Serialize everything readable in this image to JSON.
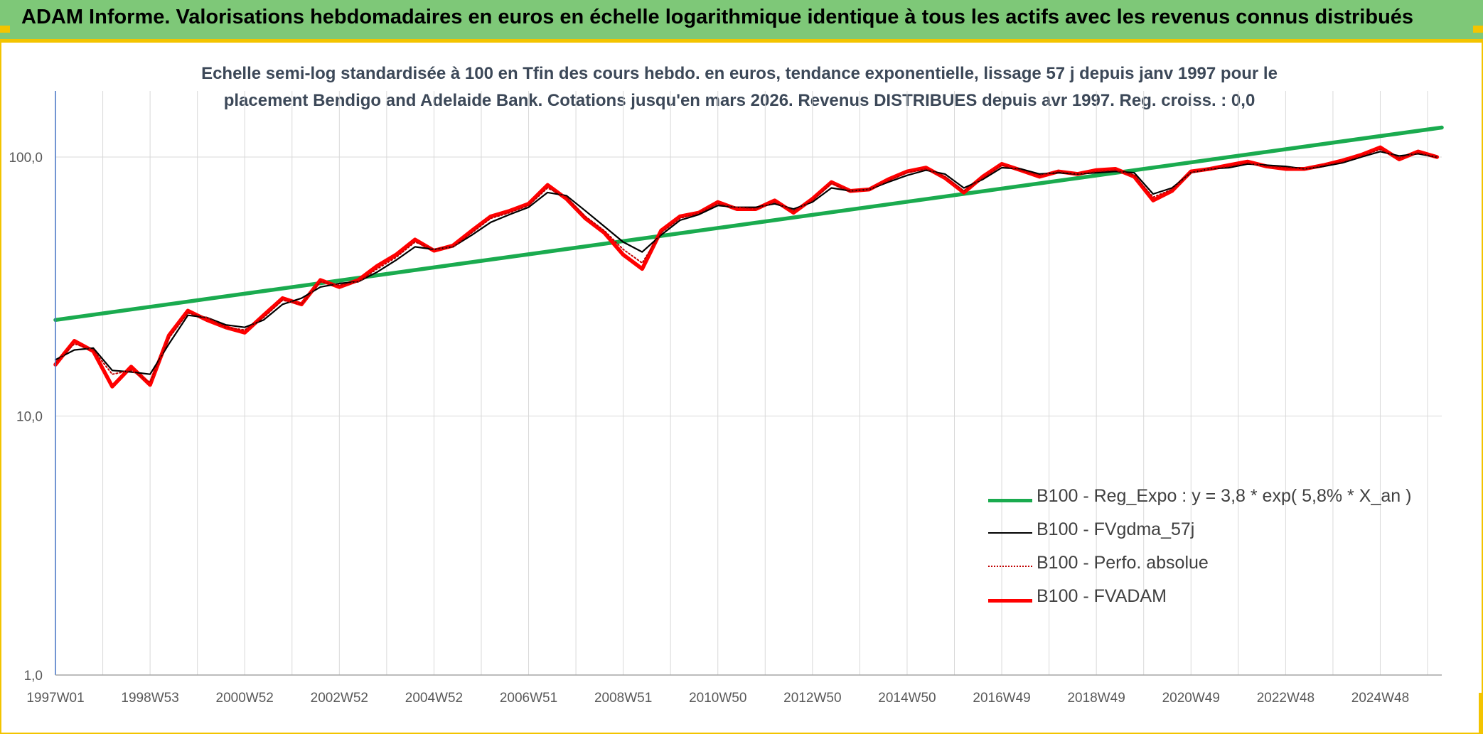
{
  "header": {
    "title": "ADAM Informe. Valorisations hebdomadaires en euros en échelle logarithmique identique à tous les actifs avec les revenus connus distribués"
  },
  "chart_data": {
    "type": "line",
    "title_line1": "Echelle semi-log standardisée à 100 en Tfin des cours hebdo. en euros, tendance exponentielle, lissage 57 j depuis janv 1997 pour le",
    "title_line2": "placement Bendigo and Adelaide Bank. Cotations jusqu'en mars 2026. Revenus DISTRIBUES depuis avr 1997. Reg. croiss. : 0,0",
    "y_scale": "log",
    "ylim": [
      1,
      180
    ],
    "xlim": [
      1997.0,
      2026.3
    ],
    "y_ticks": [
      {
        "value": 1,
        "label": "1,0"
      },
      {
        "value": 10,
        "label": "10,0"
      },
      {
        "value": 100,
        "label": "100,0"
      }
    ],
    "x_ticks": [
      {
        "year": 1997.0,
        "label": "1997W01"
      },
      {
        "year": 1999.0,
        "label": "1998W53"
      },
      {
        "year": 2001.0,
        "label": "2000W52"
      },
      {
        "year": 2003.0,
        "label": "2002W52"
      },
      {
        "year": 2005.0,
        "label": "2004W52"
      },
      {
        "year": 2007.0,
        "label": "2006W51"
      },
      {
        "year": 2009.0,
        "label": "2008W51"
      },
      {
        "year": 2011.0,
        "label": "2010W50"
      },
      {
        "year": 2013.0,
        "label": "2012W50"
      },
      {
        "year": 2015.0,
        "label": "2014W50"
      },
      {
        "year": 2017.0,
        "label": "2016W49"
      },
      {
        "year": 2019.0,
        "label": "2018W49"
      },
      {
        "year": 2021.0,
        "label": "2020W49"
      },
      {
        "year": 2023.0,
        "label": "2022W48"
      },
      {
        "year": 2025.0,
        "label": "2024W48"
      }
    ],
    "grid": "vertical-and-horizontal",
    "legend_placement": "bottom-right",
    "series": [
      {
        "name": "B100 - Reg_Expo : y = 3,8 * exp( 5,8% *  X_an )",
        "color": "#1aab4f",
        "style": "solid-thick",
        "x": [
          1997.0,
          2026.3
        ],
        "values": [
          23.5,
          130
        ]
      },
      {
        "name": "B100 - FVgdma_57j",
        "color": "#000000",
        "style": "solid-thin",
        "x": [
          1997.0,
          1997.4,
          1997.8,
          1998.2,
          1998.6,
          1999.0,
          1999.4,
          1999.8,
          2000.2,
          2000.6,
          2001.0,
          2001.4,
          2001.8,
          2002.2,
          2002.6,
          2003.0,
          2003.4,
          2003.8,
          2004.2,
          2004.6,
          2005.0,
          2005.4,
          2005.8,
          2006.2,
          2006.6,
          2007.0,
          2007.4,
          2007.8,
          2008.2,
          2008.6,
          2009.0,
          2009.4,
          2009.8,
          2010.2,
          2010.6,
          2011.0,
          2011.4,
          2011.8,
          2012.2,
          2012.6,
          2013.0,
          2013.4,
          2013.8,
          2014.2,
          2014.6,
          2015.0,
          2015.4,
          2015.8,
          2016.2,
          2016.6,
          2017.0,
          2017.4,
          2017.8,
          2018.2,
          2018.6,
          2019.0,
          2019.4,
          2019.8,
          2020.2,
          2020.6,
          2021.0,
          2021.4,
          2021.8,
          2022.2,
          2022.6,
          2023.0,
          2023.4,
          2023.8,
          2024.2,
          2024.6,
          2025.0,
          2025.4,
          2025.8,
          2026.2
        ],
        "values": [
          16.5,
          18,
          18.3,
          15,
          14.8,
          14.5,
          19,
          24.5,
          24,
          22.5,
          22,
          23.5,
          27,
          28.5,
          31.5,
          32.5,
          33,
          36,
          40,
          45,
          44,
          45,
          50,
          56,
          60,
          64,
          73,
          71,
          62,
          54,
          47,
          43,
          50,
          57,
          60,
          65,
          64,
          64,
          66,
          63,
          67,
          76,
          74,
          75,
          80,
          85,
          89,
          86,
          76,
          82,
          91,
          90,
          86,
          87,
          86,
          87,
          88,
          87,
          72,
          76,
          87,
          90,
          91,
          94,
          93,
          92,
          90,
          92,
          95,
          100,
          105,
          101,
          103,
          100
        ]
      },
      {
        "name": "B100 - Perfo. absolue",
        "color": "#c00000",
        "style": "dotted",
        "x": [
          1997.0,
          1997.4,
          1997.8,
          1998.2,
          1998.6,
          1999.0,
          1999.4,
          1999.8,
          2000.2,
          2000.6,
          2001.0,
          2001.4,
          2001.8,
          2002.2,
          2002.6,
          2003.0,
          2003.4,
          2003.8,
          2004.2,
          2004.6,
          2005.0,
          2005.4,
          2005.8,
          2006.2,
          2006.6,
          2007.0,
          2007.4,
          2007.8,
          2008.2,
          2008.6,
          2009.0,
          2009.4,
          2009.8,
          2010.2,
          2010.6,
          2011.0,
          2011.4,
          2011.8,
          2012.2,
          2012.6,
          2013.0,
          2013.4,
          2013.8,
          2014.2,
          2014.6,
          2015.0,
          2015.4,
          2015.8,
          2016.2,
          2016.6,
          2017.0,
          2017.4,
          2017.8,
          2018.2,
          2018.6,
          2019.0,
          2019.4,
          2019.8,
          2020.2,
          2020.6,
          2021.0,
          2021.4,
          2021.8,
          2022.2,
          2022.6,
          2023.0,
          2023.4,
          2023.8,
          2024.2,
          2024.6,
          2025.0,
          2025.4,
          2025.8,
          2026.2
        ],
        "values": [
          16,
          19,
          18,
          14.5,
          15,
          13.5,
          20,
          25,
          24,
          22,
          21.5,
          24,
          28,
          27,
          33,
          32,
          33,
          37,
          41,
          47,
          44,
          45,
          51,
          58,
          61,
          65,
          76,
          70,
          59,
          52,
          44,
          39,
          51,
          58,
          61,
          66,
          64,
          63,
          67,
          62,
          68,
          79,
          74,
          75,
          81,
          87,
          90,
          84,
          74,
          83,
          93,
          89,
          85,
          88,
          86,
          88,
          89,
          85,
          70,
          75,
          87,
          90,
          92,
          95,
          92,
          91,
          90,
          93,
          96,
          101,
          107,
          99,
          104,
          100
        ]
      },
      {
        "name": "B100 - FVADAM",
        "color": "#ff0000",
        "style": "solid-thick",
        "x": [
          1997.0,
          1997.4,
          1997.8,
          1998.2,
          1998.6,
          1999.0,
          1999.4,
          1999.8,
          2000.2,
          2000.6,
          2001.0,
          2001.4,
          2001.8,
          2002.2,
          2002.6,
          2003.0,
          2003.4,
          2003.8,
          2004.2,
          2004.6,
          2005.0,
          2005.4,
          2005.8,
          2006.2,
          2006.6,
          2007.0,
          2007.4,
          2007.8,
          2008.2,
          2008.6,
          2009.0,
          2009.4,
          2009.8,
          2010.2,
          2010.6,
          2011.0,
          2011.4,
          2011.8,
          2012.2,
          2012.6,
          2013.0,
          2013.4,
          2013.8,
          2014.2,
          2014.6,
          2015.0,
          2015.4,
          2015.8,
          2016.2,
          2016.6,
          2017.0,
          2017.4,
          2017.8,
          2018.2,
          2018.6,
          2019.0,
          2019.4,
          2019.8,
          2020.2,
          2020.6,
          2021.0,
          2021.4,
          2021.8,
          2022.2,
          2022.6,
          2023.0,
          2023.4,
          2023.8,
          2024.2,
          2024.6,
          2025.0,
          2025.4,
          2025.8,
          2026.2
        ],
        "values": [
          15.8,
          19.5,
          17.8,
          13,
          15.5,
          13.2,
          20.5,
          25.5,
          23.5,
          22,
          21,
          24.5,
          28.5,
          27,
          33.5,
          31.5,
          33.5,
          38,
          42,
          48,
          43.5,
          45.5,
          52,
          59,
          62,
          66,
          78,
          69,
          58,
          51,
          42,
          37,
          52,
          59,
          61,
          67,
          63,
          63,
          68,
          61,
          69,
          80,
          74,
          75,
          82,
          88,
          91,
          83,
          73,
          84,
          94,
          89,
          84,
          88,
          86,
          89,
          90,
          84,
          68,
          74,
          88,
          90,
          93,
          96,
          92,
          90,
          90,
          93,
          97,
          102,
          109,
          98,
          105,
          100
        ]
      }
    ]
  }
}
